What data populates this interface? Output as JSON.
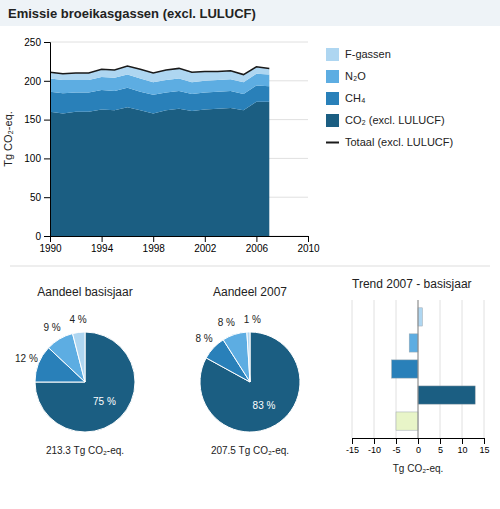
{
  "chart_data": [
    {
      "type": "area",
      "title": "Emissie broeikasgassen (excl. LULUCF)",
      "stacked": true,
      "x": [
        1990,
        1991,
        1992,
        1993,
        1994,
        1995,
        1996,
        1997,
        1998,
        1999,
        2000,
        2001,
        2002,
        2003,
        2004,
        2005,
        2006,
        2007
      ],
      "series": [
        {
          "name": "CO₂ (excl. LULUCF)",
          "color": "#1b5e82",
          "values": [
            160,
            158,
            160,
            160,
            163,
            162,
            166,
            162,
            158,
            162,
            164,
            161,
            163,
            164,
            165,
            162,
            173,
            173
          ]
        },
        {
          "name": "CH₄",
          "color": "#2980b9",
          "values": [
            26,
            26,
            25,
            25,
            25,
            25,
            25,
            24,
            24,
            23,
            23,
            22,
            22,
            22,
            22,
            21,
            21,
            20
          ]
        },
        {
          "name": "N₂O",
          "color": "#5dade2",
          "values": [
            17,
            17,
            16,
            16,
            17,
            17,
            17,
            17,
            16,
            16,
            16,
            15,
            15,
            15,
            15,
            15,
            15,
            15
          ]
        },
        {
          "name": "F-gassen",
          "color": "#aed6f1",
          "values": [
            8,
            8,
            9,
            9,
            10,
            10,
            11,
            12,
            12,
            13,
            13,
            13,
            12,
            11,
            11,
            10,
            9,
            8
          ]
        },
        {
          "name": "Totaal (excl. LULUCF)",
          "type": "line",
          "color": "#1a1a1a",
          "values": [
            211,
            209,
            210,
            210,
            215,
            214,
            219,
            215,
            210,
            214,
            216,
            211,
            212,
            212,
            213,
            208,
            218,
            216
          ]
        }
      ],
      "ylabel": "Tg CO₂-eq.",
      "xlim": [
        1990,
        2010
      ],
      "ylim": [
        0,
        250
      ],
      "xticks": [
        1990,
        1994,
        1998,
        2002,
        2006,
        2010
      ],
      "yticks": [
        0,
        50,
        100,
        150,
        200,
        250
      ],
      "grid": "y",
      "legend": "right"
    },
    {
      "type": "pie",
      "title": "Aandeel basisjaar",
      "subtitle": "213.3 Tg CO₂-eq.",
      "values": [
        75,
        12,
        9,
        4
      ],
      "value_labels": [
        "75 %",
        "12 %",
        "9 %",
        "4 %"
      ],
      "colors": [
        "#1b5e82",
        "#2980b9",
        "#5dade2",
        "#aed6f1"
      ],
      "data_labels": true
    },
    {
      "type": "pie",
      "title": "Aandeel 2007",
      "subtitle": "207.5 Tg CO₂-eq.",
      "values": [
        83,
        8,
        8,
        1
      ],
      "value_labels": [
        "83 %",
        "8 %",
        "8 %",
        "1 %"
      ],
      "colors": [
        "#1b5e82",
        "#2980b9",
        "#5dade2",
        "#aed6f1"
      ],
      "data_labels": true
    },
    {
      "type": "bar",
      "orientation": "horizontal",
      "title": "Trend 2007 - basisjaar",
      "values": [
        1,
        -2,
        -6,
        13,
        -5
      ],
      "colors": [
        "#aed6f1",
        "#5dade2",
        "#2980b9",
        "#1b5e82",
        "#e8f5c8"
      ],
      "xlabel": "Tg CO₂-eq.",
      "xlim": [
        -15,
        15
      ],
      "xticks": [
        -15,
        -10,
        -5,
        0,
        5,
        10,
        15
      ],
      "grid": "x"
    }
  ]
}
